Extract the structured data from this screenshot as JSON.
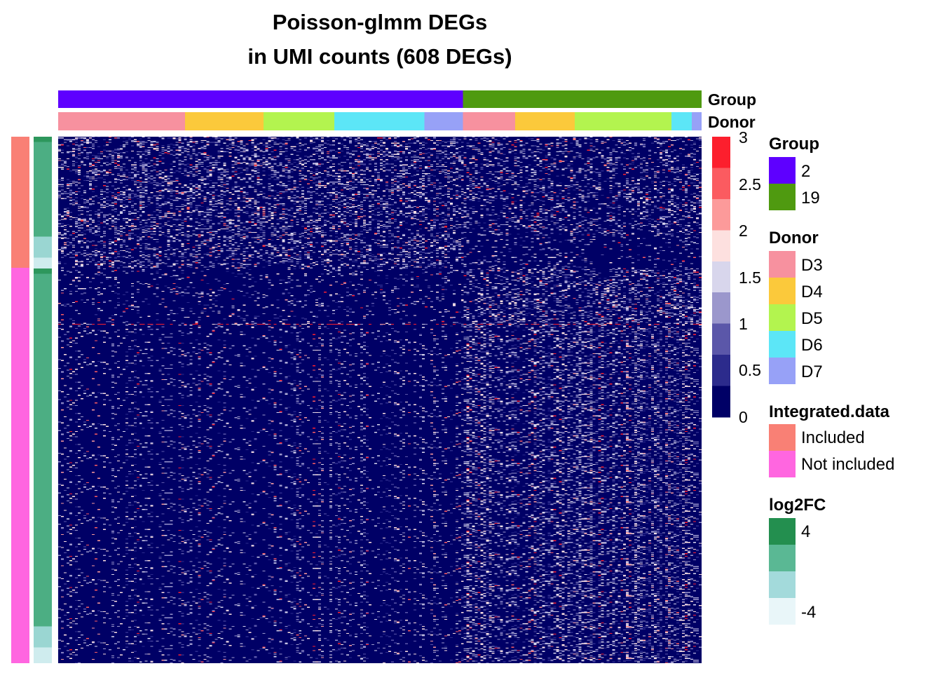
{
  "chart_data": {
    "type": "heatmap",
    "title_line1": "Poisson-glmm DEGs",
    "title_line2": "in UMI counts (608 DEGs)",
    "rows_total": 608,
    "column_annotations": [
      {
        "name": "Group",
        "segments": [
          {
            "label": "2",
            "fraction": 0.629
          },
          {
            "label": "19",
            "fraction": 0.371
          }
        ]
      },
      {
        "name": "Donor",
        "segments": [
          {
            "label": "D3",
            "fraction": 0.197
          },
          {
            "label": "D4",
            "fraction": 0.122
          },
          {
            "label": "D5",
            "fraction": 0.11
          },
          {
            "label": "D6",
            "fraction": 0.14
          },
          {
            "label": "D7",
            "fraction": 0.06
          },
          {
            "label": "D3",
            "fraction": 0.081
          },
          {
            "label": "D4",
            "fraction": 0.093
          },
          {
            "label": "D5",
            "fraction": 0.15
          },
          {
            "label": "D6",
            "fraction": 0.032
          },
          {
            "label": "D7",
            "fraction": 0.015
          }
        ]
      }
    ],
    "row_annotations": [
      {
        "name": "Integrated.data",
        "segments": [
          {
            "label": "Included",
            "fraction": 0.249
          },
          {
            "label": "Not included",
            "fraction": 0.751
          }
        ]
      },
      {
        "name": "log2FC",
        "segments": [
          {
            "level": 3.5,
            "fraction": 0.01
          },
          {
            "level": 2.0,
            "fraction": 0.18
          },
          {
            "level": -1.0,
            "fraction": 0.04
          },
          {
            "level": -3.0,
            "fraction": 0.02
          },
          {
            "level": 3.5,
            "fraction": 0.01
          },
          {
            "level": 2.0,
            "fraction": 0.67
          },
          {
            "level": -1.0,
            "fraction": 0.04
          },
          {
            "level": -3.0,
            "fraction": 0.03
          }
        ]
      }
    ],
    "color_scale": {
      "ticks": [
        "3",
        "2.5",
        "2",
        "1.5",
        "1",
        "0.5",
        "0"
      ],
      "min": 0,
      "max": 3,
      "steps": [
        {
          "value": 0.0,
          "color": "#000066"
        },
        {
          "value": 0.5,
          "color": "#2c2b8c"
        },
        {
          "value": 0.75,
          "color": "#5b57a9"
        },
        {
          "value": 1.0,
          "color": "#9b97cc"
        },
        {
          "value": 1.5,
          "color": "#d8d6ec"
        },
        {
          "value": 1.75,
          "color": "#fde0df"
        },
        {
          "value": 2.0,
          "color": "#fc9a9a"
        },
        {
          "value": 2.5,
          "color": "#fb5b60"
        },
        {
          "value": 3.0,
          "color": "#fc1f2d"
        }
      ]
    },
    "heatmap_blocks": [
      {
        "row_group": "Included",
        "column_group": "2",
        "pattern": "higher expression"
      },
      {
        "row_group": "Included",
        "column_group": "19",
        "pattern": "mostly low"
      },
      {
        "row_group": "Not included",
        "column_group": "2",
        "pattern": "mostly low"
      },
      {
        "row_group": "Not included",
        "column_group": "19",
        "pattern": "higher expression"
      }
    ]
  },
  "legends": {
    "group": {
      "title": "Group",
      "items": [
        {
          "label": "2",
          "color": "#5e00ff"
        },
        {
          "label": "19",
          "color": "#4f9a10"
        }
      ]
    },
    "donor": {
      "title": "Donor",
      "items": [
        {
          "label": "D3",
          "color": "#f7919f"
        },
        {
          "label": "D4",
          "color": "#fbc93b"
        },
        {
          "label": "D5",
          "color": "#b3f44f"
        },
        {
          "label": "D6",
          "color": "#5ce6f7"
        },
        {
          "label": "D7",
          "color": "#97a1f7"
        }
      ]
    },
    "integrated": {
      "title": "Integrated.data",
      "items": [
        {
          "label": "Included",
          "color": "#f98075"
        },
        {
          "label": "Not included",
          "color": "#ff66e0"
        }
      ]
    },
    "log2fc": {
      "title": "log2FC",
      "max_label": "4",
      "min_label": "-4",
      "colors": [
        "#238f4f",
        "#5ab894",
        "#a3dadb",
        "#e9f6f9"
      ]
    }
  }
}
